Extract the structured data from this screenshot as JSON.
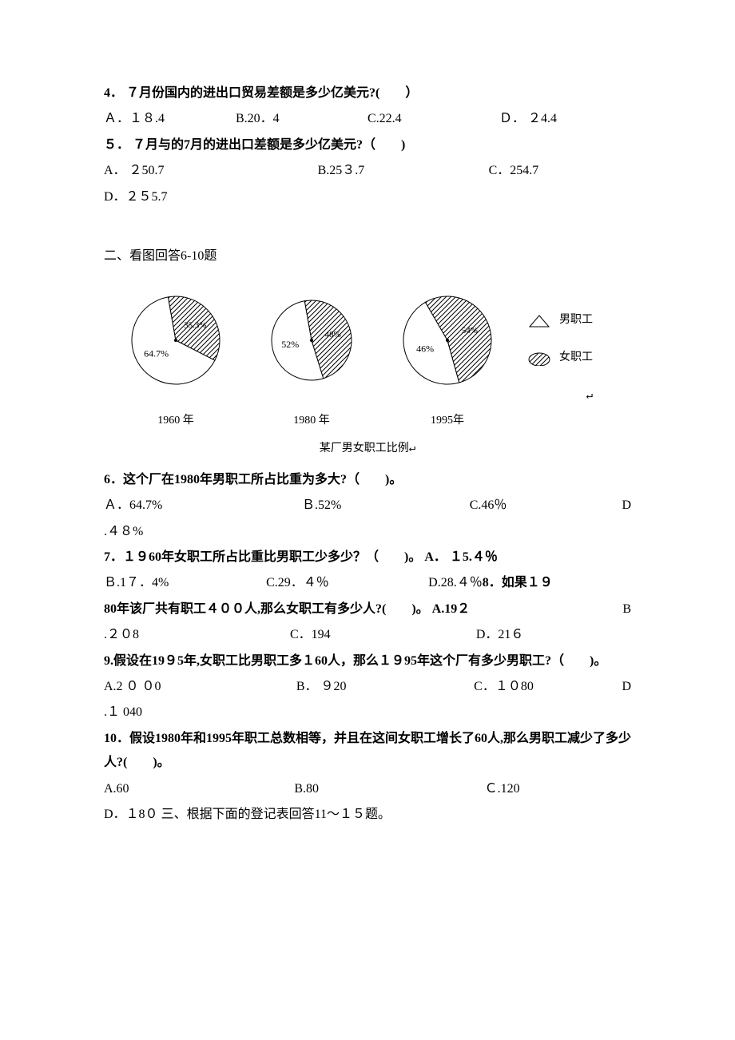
{
  "q4": {
    "text": "4． ７月份国内的进出口贸易差额是多少亿美元?(　　）",
    "A": "Ａ．１８.4",
    "B": "B.20．4",
    "C": "C.22.4",
    "D": "Ｄ． ２4.4"
  },
  "q5": {
    "text": "５． ７月与的7月的进出口差额是多少亿美元?（　　)",
    "A": "A． ２50.7",
    "B": "B.25３.7",
    "C": "C．254.7",
    "D": "D．２５5.7"
  },
  "section2": "二、看图回答6-10题",
  "chart": {
    "title": "某厂男女职工比例",
    "pies": [
      {
        "year": "1960 年",
        "male": 64.7,
        "female": 35.3,
        "male_label": "64.7%",
        "female_label": "35.3%",
        "r": 55
      },
      {
        "year": "1980 年",
        "male": 52,
        "female": 48,
        "male_label": "52%",
        "female_label": "48%",
        "r": 50
      },
      {
        "year": "1995年",
        "male": 46,
        "female": 54,
        "male_label": "46%",
        "female_label": "54%",
        "r": 55
      }
    ],
    "legend": {
      "male": "男职工",
      "female": "女职工"
    },
    "colors": {
      "male_fill": "#ffffff",
      "female_fill": "url(#hatch)",
      "stroke": "#000000"
    }
  },
  "q6": {
    "text": "6．这个厂在1980年男职工所占比重为多大?（　　)。",
    "A": "Ａ．64.7%",
    "B": "Ｂ.52%",
    "C": "C.46％",
    "D1": "D",
    "D2": ".４８%"
  },
  "q7": {
    "text": "7．１９60年女职工所占比重比男职工少多少？（　　)。 A． １5.４％",
    "B": "Ｂ.1７．4%",
    "C": "C.29．４％",
    "D": "D.28.４％"
  },
  "q8": {
    "text": "8．如果１９80年该厂共有职工４００人,那么女职工有多少人?(　　)。 A.19２",
    "B1": "B",
    "B2": ".２０8",
    "C": "C．194",
    "D": "D．21６"
  },
  "q9": {
    "text": "9.假设在19９5年,女职工比男职工多１60人，那么１９95年这个厂有多少男职工?（　　)。",
    "A": "A.2 ０ ０0",
    "B": "B． ９20",
    "C": "C．１０80",
    "D1": "D",
    "D2": ".１ 040"
  },
  "q10": {
    "text": "10．假设1980年和1995年职工总数相等，并且在这间女职工增长了60人,那么男职工减少了多少人?(　　)。",
    "A": "A.60",
    "B": "B.80",
    "C": "Ｃ.120",
    "D": "D．１8０"
  },
  "section3": "三、根据下面的登记表回答11～１５题。"
}
